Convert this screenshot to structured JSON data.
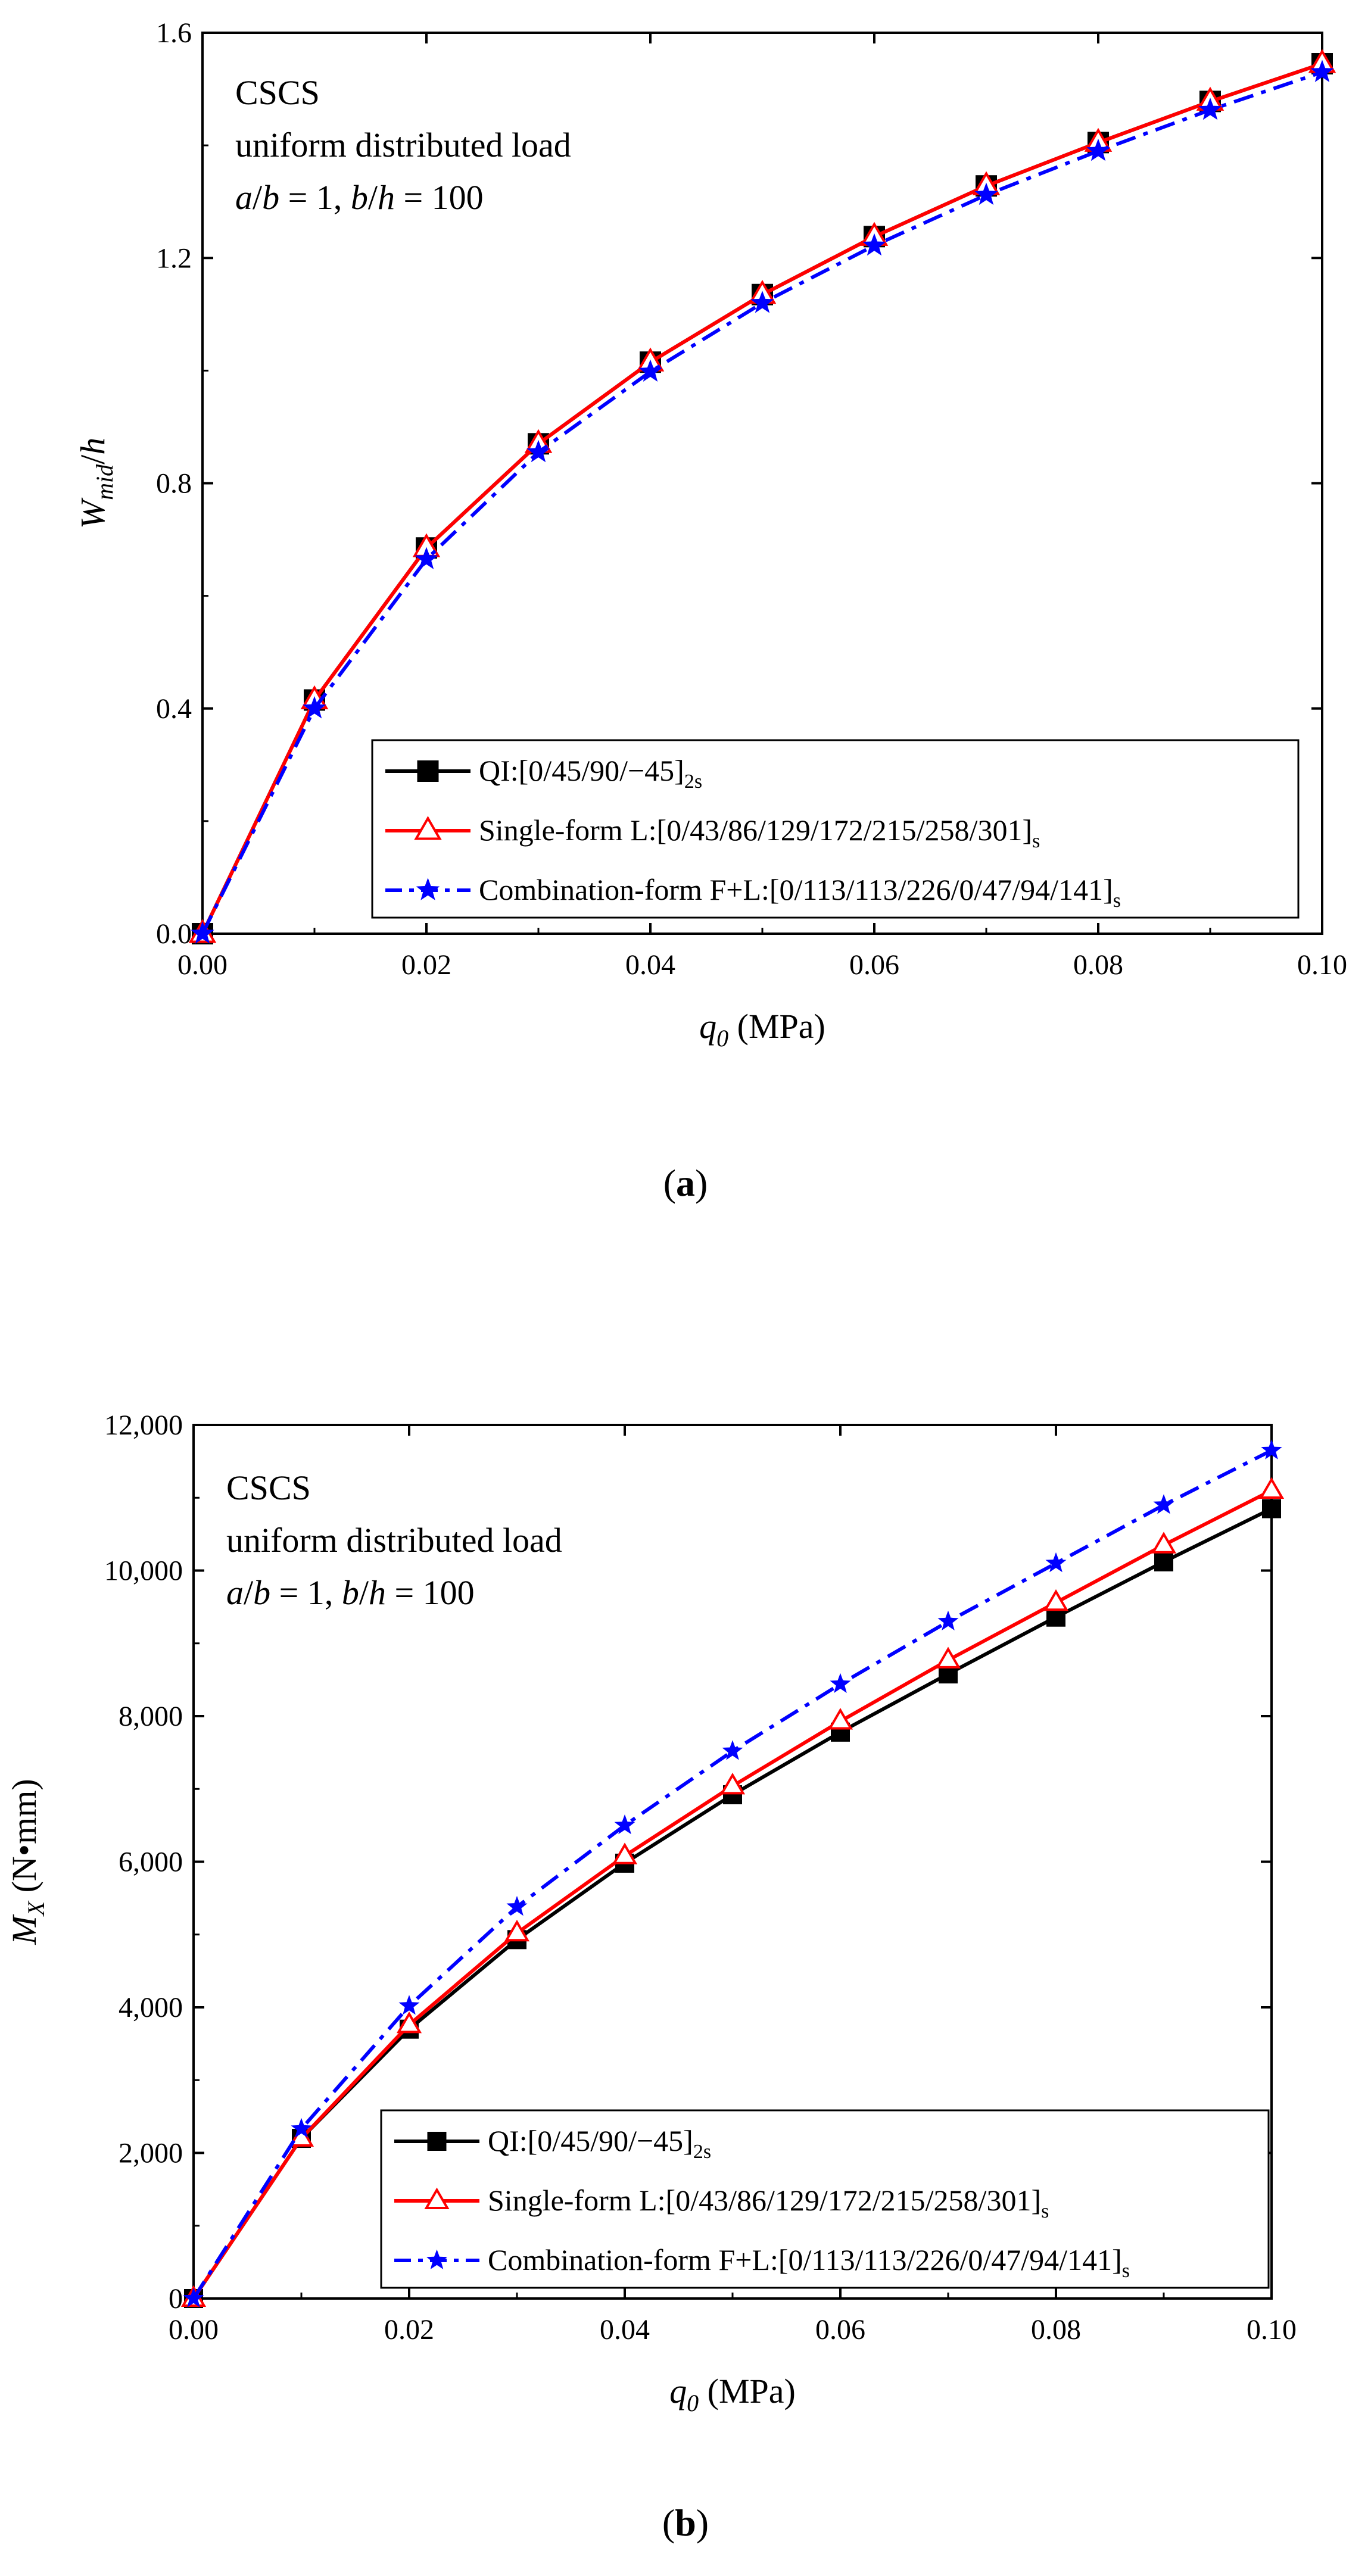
{
  "chart_data": [
    {
      "type": "line",
      "panel": "a",
      "caption": "a",
      "annotation": [
        "CSCS",
        "uniform distributed load",
        "a/b = 1, b/h = 100"
      ],
      "xlabel": "q0 (MPa)",
      "xlabel_main": "q",
      "xlabel_sub": "0",
      "xlabel_unit": "(MPa)",
      "ylabel": "Wmid/h",
      "ylabel_main": "W",
      "ylabel_sub": "mid",
      "ylabel_tail": "/h",
      "xlim": [
        0,
        0.1
      ],
      "ylim": [
        0,
        1.6
      ],
      "xticks": [
        0,
        0.02,
        0.04,
        0.06,
        0.08,
        0.1
      ],
      "xtick_labels": [
        "0.00",
        "0.02",
        "0.04",
        "0.06",
        "0.08",
        "0.10"
      ],
      "yticks": [
        0,
        0.4,
        0.8,
        1.2,
        1.6
      ],
      "ytick_labels": [
        "0.0",
        "0.4",
        "0.8",
        "1.2",
        "1.6"
      ],
      "legend_position": "bottom-right",
      "x": [
        0,
        0.01,
        0.02,
        0.03,
        0.04,
        0.05,
        0.06,
        0.07,
        0.08,
        0.09,
        0.1
      ],
      "series": [
        {
          "name": "QI:[0/45/90/−45]2s",
          "label": "QI:[0/45/90/−45]",
          "sub": "2s",
          "color": "#000000",
          "marker": "square",
          "dash": "solid",
          "values": [
            0,
            0.415,
            0.685,
            0.87,
            1.015,
            1.135,
            1.238,
            1.328,
            1.405,
            1.478,
            1.545
          ]
        },
        {
          "name": "Single-form L:[0/43/86/129/172/215/258/301]s",
          "label": "Single-form L:[0/43/86/129/172/215/258/301]",
          "sub": "s",
          "color": "#ff0000",
          "marker": "triangle",
          "dash": "solid",
          "values": [
            0,
            0.415,
            0.685,
            0.87,
            1.015,
            1.135,
            1.238,
            1.328,
            1.405,
            1.478,
            1.545
          ]
        },
        {
          "name": "Combination-form F+L:[0/113/113/226/0/47/94/141]s",
          "label": "Combination-form F+L:[0/113/113/226/0/47/94/141]",
          "sub": "s",
          "color": "#0000ff",
          "marker": "star",
          "dash": "dashdot",
          "values": [
            0,
            0.4,
            0.665,
            0.855,
            0.998,
            1.12,
            1.222,
            1.312,
            1.39,
            1.463,
            1.53
          ]
        }
      ]
    },
    {
      "type": "line",
      "panel": "b",
      "caption": "b",
      "annotation": [
        "CSCS",
        "uniform distributed load",
        "a/b = 1, b/h = 100"
      ],
      "xlabel": "q0 (MPa)",
      "xlabel_main": "q",
      "xlabel_sub": "0",
      "xlabel_unit": "(MPa)",
      "ylabel": "MX (N•mm)",
      "ylabel_main": "M",
      "ylabel_sub": "X",
      "ylabel_tail": " (N•mm)",
      "xlim": [
        0,
        0.1
      ],
      "ylim": [
        0,
        12000
      ],
      "xticks": [
        0,
        0.02,
        0.04,
        0.06,
        0.08,
        0.1
      ],
      "xtick_labels": [
        "0.00",
        "0.02",
        "0.04",
        "0.06",
        "0.08",
        "0.10"
      ],
      "yticks": [
        0,
        2000,
        4000,
        6000,
        8000,
        10000,
        12000
      ],
      "ytick_labels": [
        "0",
        "2,000",
        "4,000",
        "6,000",
        "8,000",
        "10,000",
        "12,000"
      ],
      "legend_position": "bottom-right",
      "x": [
        0,
        0.01,
        0.02,
        0.03,
        0.04,
        0.05,
        0.06,
        0.07,
        0.08,
        0.09,
        0.1
      ],
      "series": [
        {
          "name": "QI:[0/45/90/−45]2s",
          "label": "QI:[0/45/90/−45]",
          "sub": "2s",
          "color": "#000000",
          "marker": "square",
          "dash": "solid",
          "values": [
            0,
            2200,
            3700,
            4930,
            5980,
            6920,
            7780,
            8580,
            9360,
            10120,
            10850
          ]
        },
        {
          "name": "Single-form L:[0/43/86/129/172/215/258/301]s",
          "label": "Single-form L:[0/43/86/129/172/215/258/301]",
          "sub": "s",
          "color": "#ff0000",
          "marker": "triangle",
          "dash": "solid",
          "values": [
            0,
            2200,
            3760,
            5020,
            6080,
            7040,
            7930,
            8770,
            9560,
            10350,
            11100
          ]
        },
        {
          "name": "Combination-form F+L:[0/113/113/226/0/47/94/141]s",
          "label": "Combination-form F+L:[0/113/113/226/0/47/94/141]",
          "sub": "s",
          "color": "#0000ff",
          "marker": "star",
          "dash": "dashdot",
          "values": [
            0,
            2330,
            4020,
            5380,
            6500,
            7520,
            8440,
            9300,
            10100,
            10900,
            11650
          ]
        }
      ]
    }
  ]
}
